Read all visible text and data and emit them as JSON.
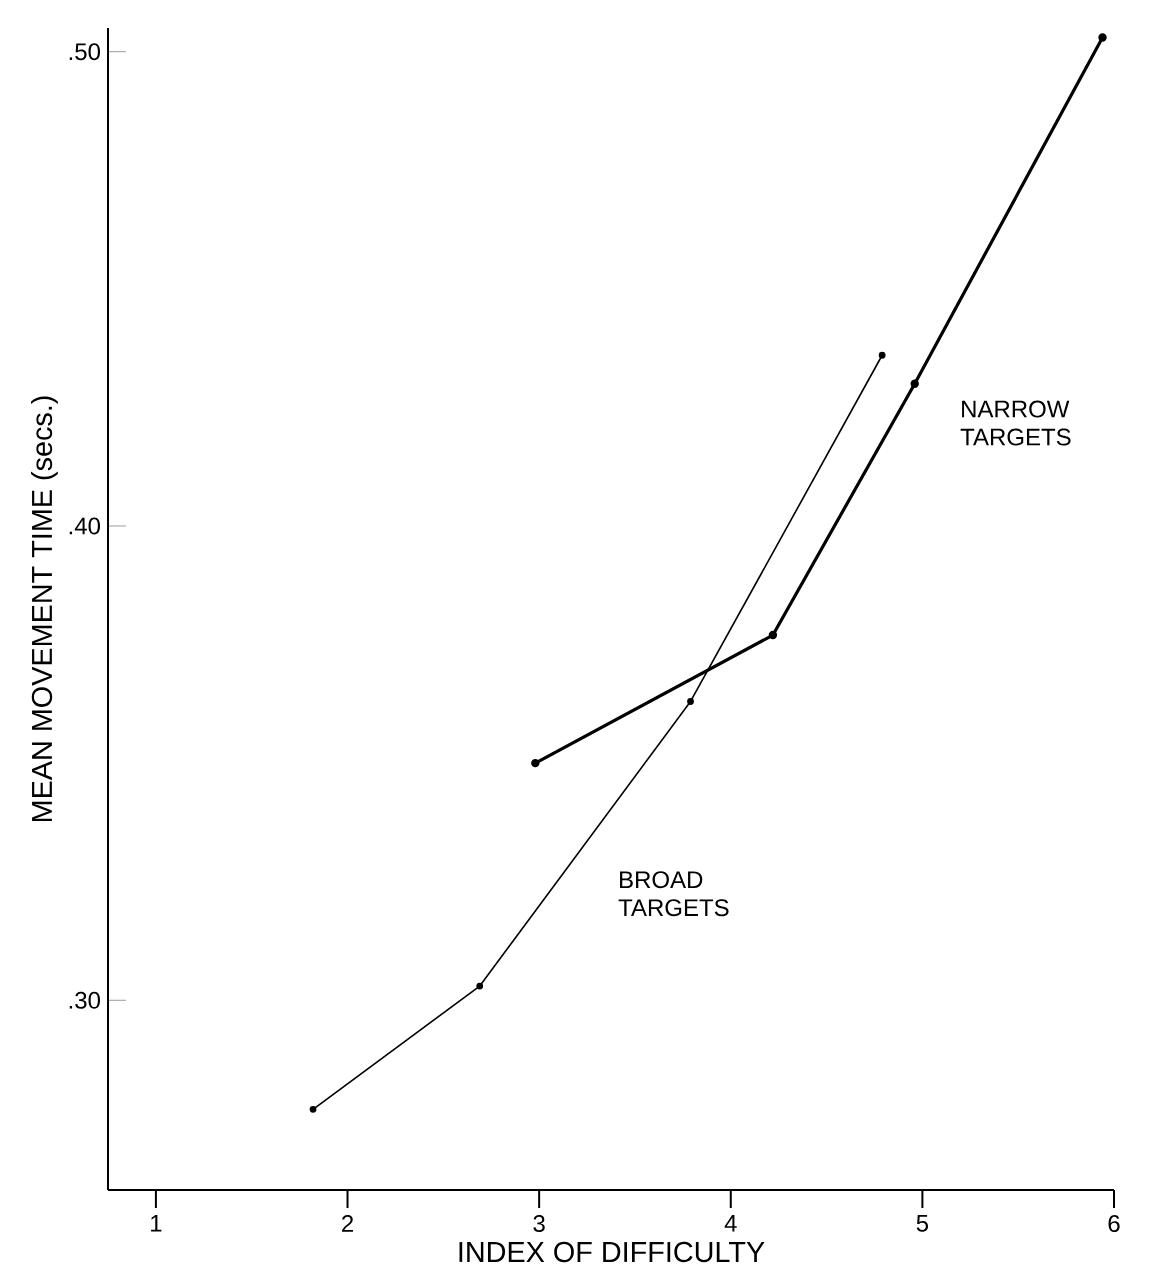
{
  "chart_data": {
    "type": "line",
    "xlabel": "INDEX OF DIFFICULTY",
    "ylabel": "MEAN MOVEMENT TIME (secs.)",
    "xlim": [
      0.75,
      6.0
    ],
    "ylim": [
      0.26,
      0.505
    ],
    "xticks": [
      1,
      2,
      3,
      4,
      5,
      6
    ],
    "yticks": [
      {
        "value": 0.3,
        "label": ".30"
      },
      {
        "value": 0.4,
        "label": ".40"
      },
      {
        "value": 0.5,
        "label": ".50"
      }
    ],
    "marker": "circle",
    "grid": false,
    "legend": false,
    "series": [
      {
        "name": "NARROW TARGETS",
        "color": "#000000",
        "x": [
          2.98,
          4.22,
          4.96,
          5.94
        ],
        "values": [
          0.35,
          0.377,
          0.43,
          0.503
        ]
      },
      {
        "name": "BROAD TARGETS",
        "color": "#000000",
        "x": [
          1.82,
          2.69,
          3.79,
          4.79
        ],
        "values": [
          0.277,
          0.303,
          0.363,
          0.436
        ]
      }
    ]
  }
}
